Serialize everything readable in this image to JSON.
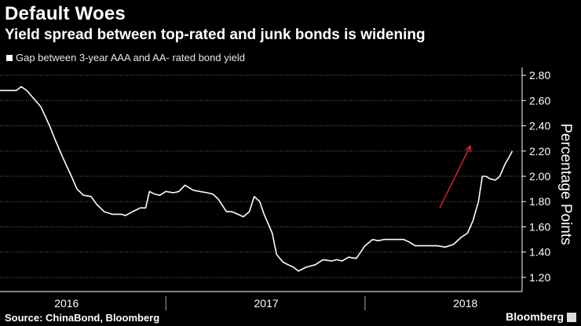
{
  "header": {
    "title": "Default Woes",
    "subtitle": "Yield spread between top-rated and junk bonds is widening"
  },
  "legend": {
    "label": "Gap between 3-year AAA and AA- rated bond yield"
  },
  "footer": {
    "source": "Source: ChinaBond, Bloomberg",
    "brand": "Bloomberg"
  },
  "colors": {
    "background": "#000000",
    "line": "#ffffff",
    "grid": "#6e6e6e",
    "arrow": "#e8283c"
  },
  "chart_data": {
    "type": "line",
    "title": "Default Woes",
    "subtitle": "Yield spread between top-rated and junk bonds is widening",
    "ylabel": "Percentage Points",
    "xlabel": "",
    "ylim": [
      1.15,
      2.85
    ],
    "yticks": [
      1.2,
      1.4,
      1.6,
      1.8,
      2.0,
      2.2,
      2.4,
      2.6,
      2.8
    ],
    "ytick_labels": [
      "1.20",
      "1.40",
      "1.60",
      "1.80",
      "2.00",
      "2.20",
      "2.40",
      "2.60",
      "2.80"
    ],
    "xlim": [
      "2015-09-01",
      "2018-04-15"
    ],
    "xtick_labels": [
      {
        "label": "2016",
        "x": "2016-01-01"
      },
      {
        "label": "2017",
        "x": "2017-01-01"
      },
      {
        "label": "2018",
        "x": "2018-01-01"
      }
    ],
    "year_boundaries": [
      "2016-07-01",
      "2017-07-01"
    ],
    "grid": true,
    "legend_position": "top-left",
    "series": [
      {
        "name": "Gap between 3-year AAA and AA- rated bond yield",
        "x": [
          "2015-09-01",
          "2015-10-01",
          "2015-10-10",
          "2015-10-20",
          "2015-11-01",
          "2015-11-15",
          "2015-12-01",
          "2015-12-10",
          "2015-12-25",
          "2016-01-10",
          "2016-01-20",
          "2016-02-01",
          "2016-02-15",
          "2016-02-25",
          "2016-03-10",
          "2016-03-25",
          "2016-04-10",
          "2016-04-18",
          "2016-05-01",
          "2016-05-15",
          "2016-05-25",
          "2016-06-01",
          "2016-06-10",
          "2016-06-20",
          "2016-07-01",
          "2016-07-15",
          "2016-07-25",
          "2016-08-05",
          "2016-08-20",
          "2016-09-01",
          "2016-09-15",
          "2016-09-25",
          "2016-10-05",
          "2016-10-20",
          "2016-10-30",
          "2016-11-10",
          "2016-11-20",
          "2016-12-01",
          "2016-12-10",
          "2016-12-20",
          "2016-12-28",
          "2017-01-05",
          "2017-01-12",
          "2017-01-20",
          "2017-02-01",
          "2017-02-10",
          "2017-02-20",
          "2017-03-01",
          "2017-03-15",
          "2017-04-01",
          "2017-04-15",
          "2017-05-01",
          "2017-05-10",
          "2017-05-20",
          "2017-06-01",
          "2017-06-15",
          "2017-07-01",
          "2017-07-15",
          "2017-07-25",
          "2017-08-05",
          "2017-08-15",
          "2017-08-25",
          "2017-09-10",
          "2017-09-20",
          "2017-10-01",
          "2017-10-15",
          "2017-10-25",
          "2017-11-10",
          "2017-11-25",
          "2017-12-10",
          "2017-12-25",
          "2018-01-05",
          "2018-01-15",
          "2018-01-25",
          "2018-02-01",
          "2018-02-08",
          "2018-02-15",
          "2018-02-25",
          "2018-03-05",
          "2018-03-10",
          "2018-03-15",
          "2018-03-22",
          "2018-03-28"
        ],
        "y": [
          2.68,
          2.68,
          2.71,
          2.68,
          2.62,
          2.55,
          2.4,
          2.3,
          2.15,
          2.0,
          1.9,
          1.85,
          1.84,
          1.78,
          1.72,
          1.7,
          1.7,
          1.69,
          1.72,
          1.75,
          1.75,
          1.88,
          1.86,
          1.85,
          1.88,
          1.87,
          1.88,
          1.93,
          1.89,
          1.88,
          1.87,
          1.86,
          1.82,
          1.72,
          1.72,
          1.7,
          1.68,
          1.72,
          1.84,
          1.8,
          1.7,
          1.62,
          1.55,
          1.38,
          1.32,
          1.3,
          1.28,
          1.25,
          1.28,
          1.3,
          1.34,
          1.33,
          1.34,
          1.33,
          1.36,
          1.35,
          1.45,
          1.5,
          1.49,
          1.5,
          1.5,
          1.5,
          1.5,
          1.48,
          1.45,
          1.45,
          1.45,
          1.45,
          1.44,
          1.46,
          1.52,
          1.55,
          1.65,
          1.8,
          2.0,
          2.0,
          1.98,
          1.97,
          2.0,
          2.05,
          2.1,
          2.15,
          2.2
        ]
      }
    ],
    "annotations": [
      {
        "type": "arrow",
        "color": "#e8283c",
        "from": {
          "x": "2017-11-15",
          "y": 1.75
        },
        "to": {
          "x": "2018-01-10",
          "y": 2.24
        }
      }
    ]
  }
}
